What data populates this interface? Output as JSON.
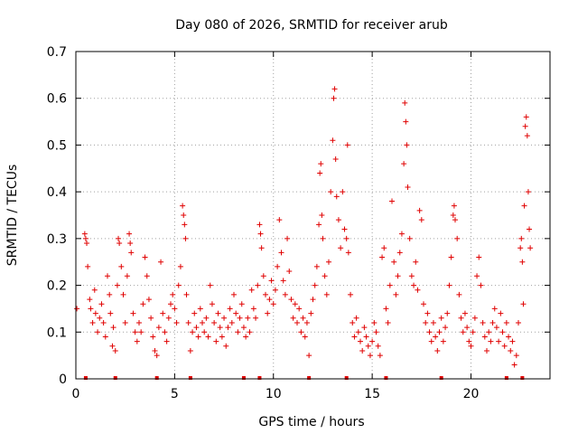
{
  "chart_data": {
    "type": "scatter",
    "title": "Day 080 of 2026, SRMTID for receiver arub",
    "xlabel": "GPS time / hours",
    "ylabel": "SRMTID / TECUs",
    "xlim": [
      0,
      24
    ],
    "ylim": [
      0,
      0.7
    ],
    "x_ticks": [
      0,
      5,
      10,
      15,
      20
    ],
    "x_tick_labels": [
      "0",
      "5",
      "10",
      "15",
      "20"
    ],
    "y_ticks": [
      0,
      0.1,
      0.2,
      0.3,
      0.4,
      0.5,
      0.6,
      0.7
    ],
    "y_tick_labels": [
      "0",
      "0.1",
      "0.2",
      "0.3",
      "0.4",
      "0.5",
      "0.6",
      "0.7"
    ],
    "grid": true,
    "marker": "plus",
    "color": "#e00000",
    "series": [
      {
        "name": "SRMTID",
        "points": [
          [
            0.05,
            0.15
          ],
          [
            0.45,
            0.31
          ],
          [
            0.5,
            0.3
          ],
          [
            0.55,
            0.29
          ],
          [
            0.6,
            0.24
          ],
          [
            0.7,
            0.17
          ],
          [
            0.75,
            0.15
          ],
          [
            0.85,
            0.12
          ],
          [
            0.95,
            0.19
          ],
          [
            1.0,
            0.14
          ],
          [
            1.1,
            0.1
          ],
          [
            1.2,
            0.13
          ],
          [
            1.3,
            0.16
          ],
          [
            1.4,
            0.12
          ],
          [
            1.5,
            0.09
          ],
          [
            1.6,
            0.22
          ],
          [
            1.7,
            0.18
          ],
          [
            1.75,
            0.14
          ],
          [
            1.85,
            0.07
          ],
          [
            1.9,
            0.11
          ],
          [
            2.0,
            0.06
          ],
          [
            2.1,
            0.2
          ],
          [
            2.15,
            0.3
          ],
          [
            2.2,
            0.29
          ],
          [
            2.3,
            0.24
          ],
          [
            2.4,
            0.18
          ],
          [
            2.5,
            0.12
          ],
          [
            2.6,
            0.22
          ],
          [
            2.7,
            0.31
          ],
          [
            2.75,
            0.29
          ],
          [
            2.8,
            0.27
          ],
          [
            2.9,
            0.14
          ],
          [
            3.0,
            0.1
          ],
          [
            3.1,
            0.08
          ],
          [
            3.2,
            0.12
          ],
          [
            3.3,
            0.1
          ],
          [
            3.4,
            0.16
          ],
          [
            3.5,
            0.26
          ],
          [
            3.6,
            0.22
          ],
          [
            3.7,
            0.17
          ],
          [
            3.8,
            0.13
          ],
          [
            3.9,
            0.09
          ],
          [
            4.0,
            0.06
          ],
          [
            4.1,
            0.05
          ],
          [
            4.2,
            0.11
          ],
          [
            4.3,
            0.25
          ],
          [
            4.4,
            0.14
          ],
          [
            4.5,
            0.1
          ],
          [
            4.6,
            0.08
          ],
          [
            4.7,
            0.13
          ],
          [
            4.8,
            0.16
          ],
          [
            4.9,
            0.18
          ],
          [
            5.0,
            0.15
          ],
          [
            5.1,
            0.12
          ],
          [
            5.2,
            0.2
          ],
          [
            5.3,
            0.24
          ],
          [
            5.4,
            0.37
          ],
          [
            5.45,
            0.35
          ],
          [
            5.5,
            0.33
          ],
          [
            5.55,
            0.3
          ],
          [
            5.6,
            0.18
          ],
          [
            5.7,
            0.12
          ],
          [
            5.8,
            0.06
          ],
          [
            5.9,
            0.1
          ],
          [
            6.0,
            0.14
          ],
          [
            6.1,
            0.11
          ],
          [
            6.2,
            0.09
          ],
          [
            6.3,
            0.15
          ],
          [
            6.4,
            0.12
          ],
          [
            6.5,
            0.1
          ],
          [
            6.6,
            0.13
          ],
          [
            6.7,
            0.09
          ],
          [
            6.8,
            0.2
          ],
          [
            6.9,
            0.16
          ],
          [
            7.0,
            0.12
          ],
          [
            7.1,
            0.08
          ],
          [
            7.2,
            0.14
          ],
          [
            7.3,
            0.11
          ],
          [
            7.4,
            0.09
          ],
          [
            7.5,
            0.13
          ],
          [
            7.6,
            0.07
          ],
          [
            7.7,
            0.11
          ],
          [
            7.8,
            0.15
          ],
          [
            7.9,
            0.12
          ],
          [
            8.0,
            0.18
          ],
          [
            8.1,
            0.14
          ],
          [
            8.2,
            0.1
          ],
          [
            8.3,
            0.13
          ],
          [
            8.4,
            0.16
          ],
          [
            8.5,
            0.11
          ],
          [
            8.6,
            0.09
          ],
          [
            8.7,
            0.13
          ],
          [
            8.8,
            0.1
          ],
          [
            8.9,
            0.19
          ],
          [
            9.0,
            0.15
          ],
          [
            9.1,
            0.13
          ],
          [
            9.2,
            0.2
          ],
          [
            9.3,
            0.33
          ],
          [
            9.35,
            0.31
          ],
          [
            9.4,
            0.28
          ],
          [
            9.5,
            0.22
          ],
          [
            9.6,
            0.18
          ],
          [
            9.7,
            0.14
          ],
          [
            9.8,
            0.17
          ],
          [
            9.9,
            0.21
          ],
          [
            10.0,
            0.16
          ],
          [
            10.1,
            0.19
          ],
          [
            10.2,
            0.24
          ],
          [
            10.3,
            0.34
          ],
          [
            10.4,
            0.27
          ],
          [
            10.5,
            0.21
          ],
          [
            10.6,
            0.18
          ],
          [
            10.7,
            0.3
          ],
          [
            10.8,
            0.23
          ],
          [
            10.9,
            0.17
          ],
          [
            11.0,
            0.13
          ],
          [
            11.1,
            0.16
          ],
          [
            11.2,
            0.12
          ],
          [
            11.3,
            0.15
          ],
          [
            11.4,
            0.1
          ],
          [
            11.5,
            0.13
          ],
          [
            11.6,
            0.09
          ],
          [
            11.7,
            0.12
          ],
          [
            11.8,
            0.05
          ],
          [
            11.9,
            0.14
          ],
          [
            12.0,
            0.17
          ],
          [
            12.1,
            0.2
          ],
          [
            12.2,
            0.24
          ],
          [
            12.3,
            0.33
          ],
          [
            12.35,
            0.44
          ],
          [
            12.4,
            0.46
          ],
          [
            12.45,
            0.35
          ],
          [
            12.5,
            0.3
          ],
          [
            12.6,
            0.22
          ],
          [
            12.7,
            0.18
          ],
          [
            12.8,
            0.25
          ],
          [
            12.9,
            0.4
          ],
          [
            13.0,
            0.51
          ],
          [
            13.05,
            0.6
          ],
          [
            13.1,
            0.62
          ],
          [
            13.15,
            0.47
          ],
          [
            13.2,
            0.39
          ],
          [
            13.3,
            0.34
          ],
          [
            13.4,
            0.28
          ],
          [
            13.5,
            0.4
          ],
          [
            13.6,
            0.32
          ],
          [
            13.7,
            0.3
          ],
          [
            13.75,
            0.5
          ],
          [
            13.8,
            0.27
          ],
          [
            13.9,
            0.18
          ],
          [
            14.0,
            0.12
          ],
          [
            14.1,
            0.09
          ],
          [
            14.2,
            0.13
          ],
          [
            14.3,
            0.1
          ],
          [
            14.4,
            0.08
          ],
          [
            14.5,
            0.06
          ],
          [
            14.6,
            0.11
          ],
          [
            14.7,
            0.09
          ],
          [
            14.8,
            0.07
          ],
          [
            14.9,
            0.05
          ],
          [
            15.0,
            0.08
          ],
          [
            15.1,
            0.12
          ],
          [
            15.2,
            0.1
          ],
          [
            15.3,
            0.07
          ],
          [
            15.4,
            0.05
          ],
          [
            15.5,
            0.26
          ],
          [
            15.6,
            0.28
          ],
          [
            15.7,
            0.15
          ],
          [
            15.8,
            0.12
          ],
          [
            15.9,
            0.2
          ],
          [
            16.0,
            0.38
          ],
          [
            16.1,
            0.25
          ],
          [
            16.2,
            0.18
          ],
          [
            16.3,
            0.22
          ],
          [
            16.4,
            0.27
          ],
          [
            16.5,
            0.31
          ],
          [
            16.6,
            0.46
          ],
          [
            16.65,
            0.59
          ],
          [
            16.7,
            0.55
          ],
          [
            16.75,
            0.5
          ],
          [
            16.8,
            0.41
          ],
          [
            16.9,
            0.3
          ],
          [
            17.0,
            0.22
          ],
          [
            17.1,
            0.2
          ],
          [
            17.2,
            0.25
          ],
          [
            17.3,
            0.19
          ],
          [
            17.4,
            0.36
          ],
          [
            17.5,
            0.34
          ],
          [
            17.6,
            0.16
          ],
          [
            17.7,
            0.12
          ],
          [
            17.8,
            0.14
          ],
          [
            17.9,
            0.1
          ],
          [
            18.0,
            0.08
          ],
          [
            18.1,
            0.12
          ],
          [
            18.2,
            0.09
          ],
          [
            18.3,
            0.06
          ],
          [
            18.4,
            0.1
          ],
          [
            18.5,
            0.13
          ],
          [
            18.6,
            0.08
          ],
          [
            18.7,
            0.11
          ],
          [
            18.8,
            0.14
          ],
          [
            18.9,
            0.2
          ],
          [
            19.0,
            0.26
          ],
          [
            19.1,
            0.35
          ],
          [
            19.15,
            0.37
          ],
          [
            19.2,
            0.34
          ],
          [
            19.3,
            0.3
          ],
          [
            19.4,
            0.18
          ],
          [
            19.5,
            0.13
          ],
          [
            19.6,
            0.1
          ],
          [
            19.7,
            0.14
          ],
          [
            19.8,
            0.11
          ],
          [
            19.9,
            0.08
          ],
          [
            20.0,
            0.07
          ],
          [
            20.1,
            0.1
          ],
          [
            20.2,
            0.13
          ],
          [
            20.3,
            0.22
          ],
          [
            20.4,
            0.26
          ],
          [
            20.5,
            0.2
          ],
          [
            20.6,
            0.12
          ],
          [
            20.7,
            0.09
          ],
          [
            20.8,
            0.06
          ],
          [
            20.9,
            0.1
          ],
          [
            21.0,
            0.08
          ],
          [
            21.1,
            0.12
          ],
          [
            21.2,
            0.15
          ],
          [
            21.3,
            0.11
          ],
          [
            21.4,
            0.08
          ],
          [
            21.5,
            0.14
          ],
          [
            21.6,
            0.1
          ],
          [
            21.7,
            0.07
          ],
          [
            21.8,
            0.12
          ],
          [
            21.9,
            0.09
          ],
          [
            22.0,
            0.06
          ],
          [
            22.1,
            0.08
          ],
          [
            22.2,
            0.03
          ],
          [
            22.3,
            0.05
          ],
          [
            22.4,
            0.12
          ],
          [
            22.5,
            0.28
          ],
          [
            22.55,
            0.3
          ],
          [
            22.6,
            0.25
          ],
          [
            22.65,
            0.16
          ],
          [
            22.7,
            0.37
          ],
          [
            22.75,
            0.54
          ],
          [
            22.8,
            0.56
          ],
          [
            22.85,
            0.52
          ],
          [
            22.9,
            0.4
          ],
          [
            22.95,
            0.32
          ],
          [
            23.0,
            0.28
          ]
        ]
      }
    ],
    "axis_markers_x": [
      0.5,
      2.0,
      4.1,
      5.8,
      8.5,
      9.3,
      11.8,
      13.7,
      15.7,
      18.5,
      21.8,
      22.6
    ]
  }
}
